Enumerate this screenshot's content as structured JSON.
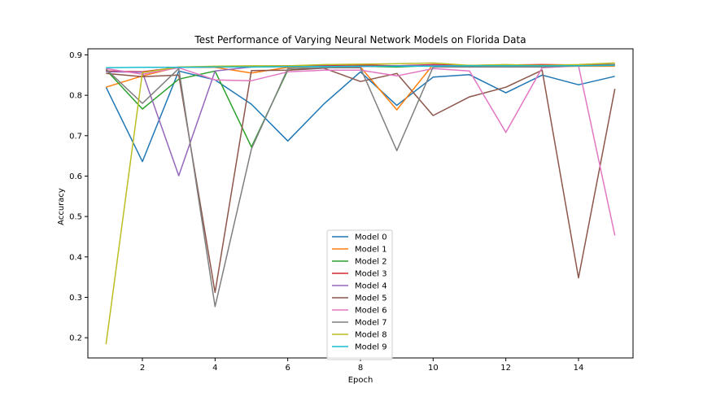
{
  "chart_data": {
    "type": "line",
    "title": "Test Performance of Varying Neural Network Models on Florida Data",
    "xlabel": "Epoch",
    "ylabel": "Accuracy",
    "xlim": [
      0.5,
      15.5
    ],
    "ylim": [
      0.15,
      0.915
    ],
    "xticks": [
      2,
      4,
      6,
      8,
      10,
      12,
      14
    ],
    "yticks": [
      0.2,
      0.3,
      0.4,
      0.5,
      0.6,
      0.7,
      0.8,
      0.9
    ],
    "grid": false,
    "legend_position": "bottom-center",
    "x": [
      1,
      2,
      3,
      4,
      5,
      6,
      7,
      8,
      9,
      10,
      11,
      12,
      13,
      14,
      15
    ],
    "series": [
      {
        "name": "Model 0",
        "color": "#1f77b4",
        "values": [
          0.82,
          0.636,
          0.86,
          0.838,
          0.778,
          0.687,
          0.779,
          0.858,
          0.775,
          0.845,
          0.851,
          0.806,
          0.85,
          0.826,
          0.847
        ]
      },
      {
        "name": "Model 1",
        "color": "#ff7f0e",
        "values": [
          0.82,
          0.848,
          0.87,
          0.869,
          0.855,
          0.869,
          0.872,
          0.87,
          0.764,
          0.876,
          0.87,
          0.873,
          0.87,
          0.872,
          0.872
        ]
      },
      {
        "name": "Model 2",
        "color": "#2ca02c",
        "values": [
          0.863,
          0.766,
          0.84,
          0.86,
          0.672,
          0.862,
          0.868,
          0.872,
          0.87,
          0.874,
          0.872,
          0.875,
          0.873,
          0.875,
          0.876
        ]
      },
      {
        "name": "Model 3",
        "color": "#d62728",
        "values": [
          0.86,
          0.858,
          0.869,
          0.87,
          0.872,
          0.873,
          0.874,
          0.875,
          0.873,
          0.876,
          0.874,
          0.875,
          0.876,
          0.875,
          0.876
        ]
      },
      {
        "name": "Model 4",
        "color": "#9467bd",
        "values": [
          0.858,
          0.857,
          0.601,
          0.86,
          0.87,
          0.871,
          0.872,
          0.871,
          0.873,
          0.874,
          0.873,
          0.874,
          0.874,
          0.873,
          0.876
        ]
      },
      {
        "name": "Model 5",
        "color": "#8c564b",
        "values": [
          0.854,
          0.846,
          0.85,
          0.312,
          0.861,
          0.862,
          0.867,
          0.834,
          0.854,
          0.75,
          0.796,
          0.82,
          0.862,
          0.348,
          0.816
        ]
      },
      {
        "name": "Model 6",
        "color": "#e377c2",
        "values": [
          0.866,
          0.852,
          0.868,
          0.838,
          0.836,
          0.858,
          0.862,
          0.862,
          0.848,
          0.866,
          0.86,
          0.708,
          0.868,
          0.873,
          0.453
        ]
      },
      {
        "name": "Model 7",
        "color": "#7f7f7f",
        "values": [
          0.865,
          0.78,
          0.866,
          0.277,
          0.667,
          0.866,
          0.868,
          0.868,
          0.663,
          0.87,
          0.87,
          0.87,
          0.87,
          0.873,
          0.876
        ]
      },
      {
        "name": "Model 8",
        "color": "#bcbd22",
        "values": [
          0.184,
          0.856,
          0.87,
          0.872,
          0.873,
          0.873,
          0.876,
          0.877,
          0.878,
          0.88,
          0.874,
          0.876,
          0.874,
          0.876,
          0.88
        ]
      },
      {
        "name": "Model 9",
        "color": "#17becf",
        "values": [
          0.868,
          0.869,
          0.869,
          0.87,
          0.87,
          0.871,
          0.871,
          0.872,
          0.872,
          0.872,
          0.873,
          0.873,
          0.873,
          0.873,
          0.874
        ]
      }
    ]
  }
}
